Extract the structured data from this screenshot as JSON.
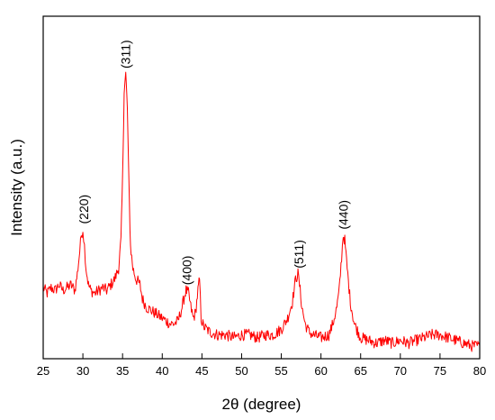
{
  "chart_data": {
    "type": "line",
    "title": "",
    "xlabel": "2θ (degree)",
    "ylabel": "Intensity (a.u.)",
    "xlim": [
      25,
      80
    ],
    "ylim": [
      0,
      100
    ],
    "x_ticks": [
      25,
      30,
      35,
      40,
      45,
      50,
      55,
      60,
      65,
      70,
      75,
      80
    ],
    "y_ticks_shown": false,
    "grid": false,
    "legend": "none",
    "series": [
      {
        "color": "#ff0000",
        "x": [
          25,
          25.5,
          26,
          26.5,
          27,
          27.5,
          28,
          28.5,
          29,
          29.3,
          29.6,
          29.8,
          30.0,
          30.2,
          30.4,
          30.7,
          31,
          31.5,
          32,
          32.5,
          33,
          33.5,
          34,
          34.5,
          34.8,
          35.0,
          35.2,
          35.4,
          35.6,
          35.8,
          36.0,
          36.3,
          36.7,
          37.0,
          37.2,
          37.5,
          38,
          38.5,
          39,
          39.5,
          40,
          40.5,
          41,
          41.5,
          42,
          42.5,
          42.8,
          43.0,
          43.3,
          43.6,
          43.9,
          44.2,
          44.5,
          44.7,
          44.9,
          45.2,
          45.6,
          46,
          47,
          48,
          49,
          50,
          51,
          52,
          53,
          54,
          55,
          55.8,
          56.4,
          56.8,
          57.1,
          57.3,
          57.6,
          58,
          58.5,
          59,
          60,
          61,
          61.5,
          62,
          62.3,
          62.6,
          62.8,
          63.0,
          63.3,
          63.7,
          64.2,
          65,
          66,
          67,
          68,
          69,
          70,
          71,
          72,
          73,
          74,
          75,
          76,
          77,
          78,
          79,
          80
        ],
        "y": [
          23,
          21,
          23,
          22,
          24,
          22,
          23,
          24,
          22,
          28,
          36,
          42,
          44,
          38,
          30,
          24,
          22,
          21,
          22,
          23,
          22,
          24,
          26,
          30,
          40,
          62,
          94,
          100,
          88,
          60,
          38,
          30,
          26,
          25,
          24,
          19,
          16,
          15,
          14,
          13,
          12,
          11,
          10,
          10,
          11,
          16,
          20,
          22,
          21,
          16,
          12,
          14,
          22,
          26,
          12,
          9,
          8,
          7,
          6,
          6,
          5,
          6,
          6,
          5,
          6,
          6,
          8,
          12,
          18,
          26,
          28,
          24,
          16,
          10,
          7,
          6,
          5,
          6,
          10,
          16,
          22,
          34,
          42,
          40,
          30,
          18,
          10,
          5,
          4,
          3,
          4,
          3,
          4,
          3,
          4,
          5,
          6,
          6,
          5,
          4,
          3,
          2,
          2
        ]
      }
    ],
    "annotations": [
      {
        "text": "(220)",
        "x": 30.1,
        "y": 44
      },
      {
        "text": "(311)",
        "x": 35.4,
        "y": 100
      },
      {
        "text": "(400)",
        "x": 43.1,
        "y": 22
      },
      {
        "text": "(511)",
        "x": 57.2,
        "y": 28
      },
      {
        "text": "(440)",
        "x": 62.8,
        "y": 42
      }
    ]
  }
}
